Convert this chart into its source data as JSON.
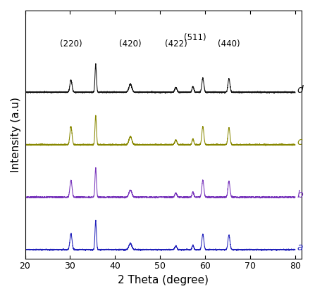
{
  "title": "",
  "xlabel": "2 Theta (degree)",
  "ylabel": "Intensity (a.u)",
  "xlim": [
    20,
    80
  ],
  "x_ticks": [
    20,
    30,
    40,
    50,
    60,
    70,
    80
  ],
  "colors": {
    "a": "#2222bb",
    "b": "#7733bb",
    "c": "#888800",
    "d": "#111111"
  },
  "labels": [
    "a",
    "b",
    "c",
    "d"
  ],
  "offsets": [
    0.0,
    1.8,
    3.6,
    5.4
  ],
  "peak_positions": [
    30.2,
    35.7,
    43.4,
    53.5,
    57.3,
    59.5,
    65.3
  ],
  "peak_heights_a": [
    0.55,
    1.0,
    0.22,
    0.12,
    0.15,
    0.52,
    0.5
  ],
  "peak_heights_b": [
    0.58,
    1.0,
    0.25,
    0.14,
    0.18,
    0.58,
    0.55
  ],
  "peak_heights_c": [
    0.62,
    1.0,
    0.28,
    0.16,
    0.2,
    0.62,
    0.58
  ],
  "peak_heights_d": [
    0.42,
    0.95,
    0.28,
    0.16,
    0.2,
    0.48,
    0.46
  ],
  "peak_widths": [
    0.55,
    0.38,
    0.75,
    0.55,
    0.45,
    0.52,
    0.52
  ],
  "annotations": [
    {
      "label": "(220)",
      "x": 30.2
    },
    {
      "label": "(420)",
      "x": 43.4
    },
    {
      "label": "(422)",
      "x": 53.5
    },
    {
      "label": "(511)",
      "x": 57.8
    },
    {
      "label": "(440)",
      "x": 65.3
    }
  ],
  "noise_amplitude": 0.01,
  "background_color": "#ffffff"
}
